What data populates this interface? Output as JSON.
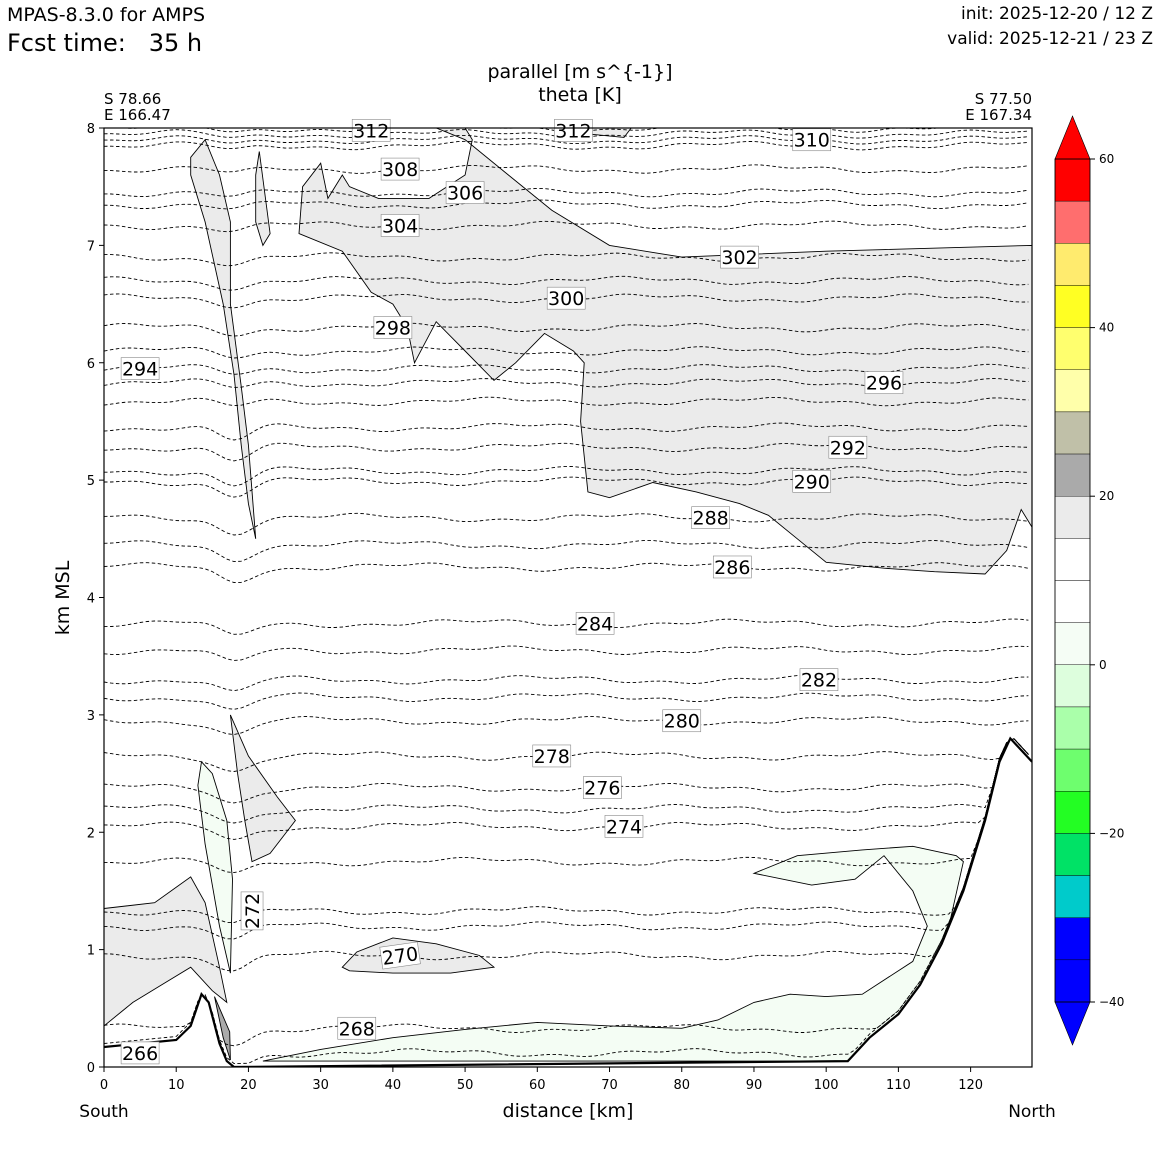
{
  "header": {
    "model": "MPAS-8.3.0 for AMPS",
    "fcst_label": "Fcst time:",
    "fcst_value": "35 h",
    "init": "init: 2025-12-20 / 12 Z",
    "valid": "valid: 2025-12-21 / 23 Z"
  },
  "chart_data": {
    "type": "contour",
    "title_line1": "parallel [m s^{-1}]",
    "title_line2": "theta [K]",
    "xlabel": "distance [km]",
    "ylabel": "km MSL",
    "xlim": [
      0,
      128.5
    ],
    "ylim": [
      0,
      8
    ],
    "xticks": [
      0,
      10,
      20,
      30,
      40,
      50,
      60,
      70,
      80,
      90,
      100,
      110,
      120
    ],
    "yticks": [
      0,
      1,
      2,
      3,
      4,
      5,
      6,
      7,
      8
    ],
    "endpoints": {
      "left": {
        "lat": "S 78.66",
        "lon": "E 166.47",
        "dir": "South"
      },
      "right": {
        "lat": "S 77.50",
        "lon": "E 167.34",
        "dir": "North"
      }
    },
    "terrain": [
      [
        0,
        0.17
      ],
      [
        5,
        0.2
      ],
      [
        10,
        0.23
      ],
      [
        12,
        0.35
      ],
      [
        13.5,
        0.62
      ],
      [
        14.5,
        0.55
      ],
      [
        16,
        0.2
      ],
      [
        17,
        0.05
      ],
      [
        18,
        0
      ],
      [
        103,
        0.05
      ],
      [
        106,
        0.25
      ],
      [
        110,
        0.45
      ],
      [
        113,
        0.7
      ],
      [
        116,
        1.05
      ],
      [
        119,
        1.5
      ],
      [
        122,
        2.1
      ],
      [
        124,
        2.6
      ],
      [
        125.5,
        2.8
      ],
      [
        127,
        2.7
      ],
      [
        128.5,
        2.6
      ]
    ],
    "theta_contours": [
      {
        "label": "266",
        "y": 0.12,
        "label_x": 2
      },
      {
        "label": "268",
        "y": 0.33,
        "label_x": 32
      },
      {
        "label": "270",
        "y": 0.95,
        "label_x": 38
      },
      {
        "label": "272",
        "y": 1.33,
        "label_x": 17.5
      },
      {
        "label": "274",
        "y": 2.05,
        "label_x": 69
      },
      {
        "label": "276",
        "y": 2.38,
        "label_x": 66
      },
      {
        "label": "278",
        "y": 2.65,
        "label_x": 59
      },
      {
        "label": "280",
        "y": 2.95,
        "label_x": 77
      },
      {
        "label": "282",
        "y": 3.3,
        "label_x": 96
      },
      {
        "label": "284",
        "y": 3.78,
        "label_x": 65
      },
      {
        "label": "286",
        "y": 4.26,
        "label_x": 84
      },
      {
        "label": "288",
        "y": 4.68,
        "label_x": 81
      },
      {
        "label": "290",
        "y": 4.99,
        "label_x": 95
      },
      {
        "label": "292",
        "y": 5.28,
        "label_x": 100
      },
      {
        "label": "294",
        "y": 5.95,
        "label_x": 2
      },
      {
        "label": "296",
        "y": 5.83,
        "label_x": 105
      },
      {
        "label": "298",
        "y": 6.3,
        "label_x": 37
      },
      {
        "label": "300",
        "y": 6.55,
        "label_x": 61
      },
      {
        "label": "302",
        "y": 6.9,
        "label_x": 85
      },
      {
        "label": "304",
        "y": 7.17,
        "label_x": 38
      },
      {
        "label": "306",
        "y": 7.45,
        "label_x": 47
      },
      {
        "label": "308",
        "y": 7.65,
        "label_x": 38
      },
      {
        "label": "310",
        "y": 7.9,
        "label_x": 95
      },
      {
        "label": "312",
        "y": 8.0,
        "label_x": 34
      },
      {
        "label": "312",
        "y": 8.0,
        "label_x": 62
      }
    ],
    "extra_theta_levels": [
      1.2,
      1.75,
      2.2,
      3.15,
      3.55,
      4.45,
      5.08,
      5.45,
      5.67,
      6.1,
      6.7,
      7.35,
      7.85,
      7.95
    ],
    "parallel_wind_regions": [
      {
        "level": "5-10",
        "pts": [
          [
            46,
            8
          ],
          [
            50,
            7.9
          ],
          [
            56,
            7.6
          ],
          [
            62,
            7.3
          ],
          [
            70,
            7.0
          ],
          [
            80,
            6.9
          ],
          [
            100,
            6.95
          ],
          [
            128.5,
            7.0
          ],
          [
            128.5,
            4.6
          ],
          [
            127,
            4.75
          ],
          [
            125,
            4.4
          ],
          [
            122,
            4.2
          ],
          [
            115,
            4.22
          ],
          [
            108,
            4.25
          ],
          [
            100,
            4.3
          ],
          [
            96,
            4.5
          ],
          [
            92,
            4.7
          ],
          [
            88,
            4.8
          ],
          [
            82,
            4.9
          ],
          [
            76,
            4.98
          ],
          [
            70,
            4.85
          ],
          [
            67,
            4.9
          ],
          [
            66,
            5.5
          ],
          [
            66.5,
            6.0
          ],
          [
            65,
            6.1
          ],
          [
            61,
            6.25
          ],
          [
            57,
            6.0
          ],
          [
            54,
            5.85
          ],
          [
            50,
            6.1
          ],
          [
            46,
            6.35
          ],
          [
            43,
            6.0
          ],
          [
            42,
            6.3
          ],
          [
            40,
            6.5
          ],
          [
            37,
            6.6
          ],
          [
            33,
            6.95
          ],
          [
            27,
            7.1
          ],
          [
            27.5,
            7.5
          ],
          [
            30,
            7.7
          ],
          [
            31,
            7.4
          ],
          [
            33,
            7.6
          ],
          [
            34,
            7.5
          ],
          [
            38,
            7.4
          ],
          [
            45,
            7.4
          ],
          [
            50,
            7.6
          ],
          [
            51,
            7.9
          ],
          [
            50,
            8.0
          ]
        ]
      },
      {
        "level": "5-10",
        "pts": [
          [
            12,
            7.75
          ],
          [
            14,
            7.9
          ],
          [
            16,
            7.6
          ],
          [
            17.5,
            7.2
          ],
          [
            17.5,
            6.5
          ],
          [
            19,
            5.8
          ],
          [
            20,
            5.3
          ],
          [
            21,
            4.5
          ],
          [
            20,
            4.8
          ],
          [
            19,
            5.3
          ],
          [
            18,
            5.9
          ],
          [
            16.5,
            6.5
          ],
          [
            14,
            7.2
          ],
          [
            12,
            7.6
          ]
        ]
      },
      {
        "level": "5-10",
        "pts": [
          [
            21,
            7.6
          ],
          [
            21.5,
            7.8
          ],
          [
            23,
            7.1
          ],
          [
            22,
            7.0
          ],
          [
            21,
            7.2
          ]
        ]
      },
      {
        "level": "5-10",
        "pts": [
          [
            65,
            8
          ],
          [
            73,
            8
          ],
          [
            72,
            7.92
          ],
          [
            67,
            7.95
          ]
        ]
      },
      {
        "level": "5-10",
        "pts": [
          [
            0,
            1.35
          ],
          [
            7,
            1.4
          ],
          [
            12,
            1.62
          ],
          [
            14,
            1.4
          ],
          [
            16,
            0.85
          ],
          [
            17,
            0.55
          ],
          [
            15,
            0.65
          ],
          [
            12,
            0.85
          ],
          [
            8,
            0.7
          ],
          [
            4,
            0.55
          ],
          [
            0,
            0.35
          ]
        ]
      },
      {
        "level": "5-10",
        "pts": [
          [
            17.5,
            3.0
          ],
          [
            20,
            2.65
          ],
          [
            24,
            2.3
          ],
          [
            26.5,
            2.1
          ],
          [
            23,
            1.82
          ],
          [
            20.5,
            1.75
          ],
          [
            19.5,
            2.1
          ],
          [
            18.5,
            2.5
          ]
        ]
      },
      {
        "level": "5-10",
        "pts": [
          [
            33,
            0.85
          ],
          [
            35,
            0.98
          ],
          [
            40,
            1.1
          ],
          [
            46,
            1.05
          ],
          [
            52,
            0.95
          ],
          [
            54,
            0.85
          ],
          [
            48,
            0.8
          ],
          [
            40,
            0.8
          ],
          [
            34,
            0.82
          ]
        ]
      },
      {
        "level": "-5-0",
        "pts": [
          [
            13.5,
            2.6
          ],
          [
            15,
            2.5
          ],
          [
            17,
            2.1
          ],
          [
            17.8,
            1.6
          ],
          [
            17.5,
            0.8
          ],
          [
            16,
            1.2
          ],
          [
            14,
            1.9
          ],
          [
            13,
            2.4
          ]
        ]
      },
      {
        "level": "-5-0",
        "pts": [
          [
            22,
            0.05
          ],
          [
            30,
            0.15
          ],
          [
            40,
            0.25
          ],
          [
            50,
            0.32
          ],
          [
            60,
            0.38
          ],
          [
            70,
            0.35
          ],
          [
            80,
            0.33
          ],
          [
            85,
            0.4
          ],
          [
            90,
            0.55
          ],
          [
            95,
            0.62
          ],
          [
            100,
            0.6
          ],
          [
            105,
            0.62
          ],
          [
            112,
            0.9
          ],
          [
            114,
            1.2
          ],
          [
            112,
            1.5
          ],
          [
            108,
            1.8
          ],
          [
            104,
            1.6
          ],
          [
            98,
            1.55
          ],
          [
            90,
            1.65
          ],
          [
            96,
            1.8
          ],
          [
            105,
            1.85
          ],
          [
            112,
            1.88
          ],
          [
            118,
            1.8
          ],
          [
            119,
            1.75
          ],
          [
            117,
            1.2
          ],
          [
            114,
            0.7
          ],
          [
            110,
            0.45
          ],
          [
            106,
            0.25
          ],
          [
            103,
            0.05
          ]
        ]
      },
      {
        "level": "15-20",
        "pts": [
          [
            15.3,
            0.6
          ],
          [
            16.5,
            0.25
          ],
          [
            17.5,
            0.06
          ],
          [
            17.4,
            0.3
          ]
        ]
      }
    ],
    "colorbar": {
      "ticks": [
        "60",
        "40",
        "20",
        "0",
        "−20",
        "−40"
      ],
      "levels": [
        {
          "lo": 55,
          "hi": 60,
          "color": "#ff0000"
        },
        {
          "lo": 50,
          "hi": 55,
          "color": "#ff6e6e"
        },
        {
          "lo": 45,
          "hi": 50,
          "color": "#ffeb6e"
        },
        {
          "lo": 40,
          "hi": 45,
          "color": "#ffff23"
        },
        {
          "lo": 35,
          "hi": 40,
          "color": "#ffff6e"
        },
        {
          "lo": 30,
          "hi": 35,
          "color": "#ffffaa"
        },
        {
          "lo": 25,
          "hi": 30,
          "color": "#c0c0a8"
        },
        {
          "lo": 20,
          "hi": 25,
          "color": "#aaaaaa"
        },
        {
          "lo": 15,
          "hi": 20,
          "color": "#ebebeb"
        },
        {
          "lo": 10,
          "hi": 15,
          "color": "#ffffff"
        },
        {
          "lo": 5,
          "hi": 10,
          "color": "#ffffff"
        },
        {
          "lo": 0,
          "hi": 5,
          "color": "#f5fdf5"
        },
        {
          "lo": -5,
          "hi": 0,
          "color": "#ddfedd"
        },
        {
          "lo": -10,
          "hi": -5,
          "color": "#aaffaa"
        },
        {
          "lo": -15,
          "hi": -10,
          "color": "#6efe6e"
        },
        {
          "lo": -20,
          "hi": -15,
          "color": "#23fe23"
        },
        {
          "lo": -25,
          "hi": -20,
          "color": "#00e266"
        },
        {
          "lo": -30,
          "hi": -25,
          "color": "#00cbcb"
        },
        {
          "lo": -35,
          "hi": -30,
          "color": "#0000ff"
        },
        {
          "lo": -40,
          "hi": -35,
          "color": "#0000ff"
        }
      ],
      "over_color": "#ff0000",
      "under_color": "#0000ff",
      "region_colors": {
        "5-10": "#ebebeb",
        "-5-0": "#f4fdf4",
        "15-20": "#aaaaaa"
      }
    }
  }
}
